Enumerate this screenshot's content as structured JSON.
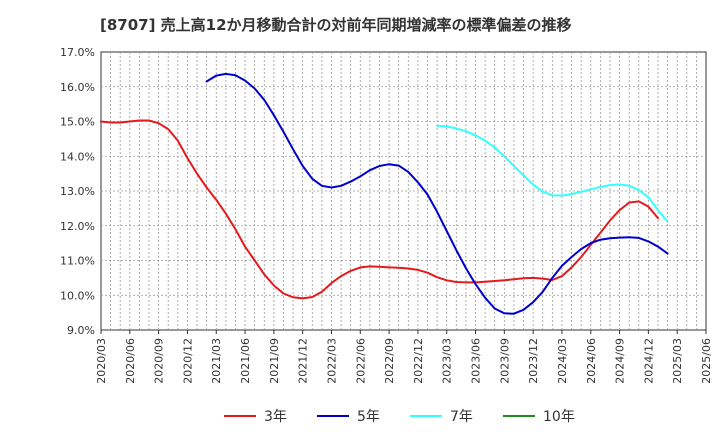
{
  "chart_data": {
    "type": "line",
    "title": "[8707]  売上高12か月移動合計の対前年同期増減率の標準偏差の推移",
    "ylim": [
      9.0,
      17.0
    ],
    "yticks": [
      "9.0%",
      "10.0%",
      "11.0%",
      "12.0%",
      "13.0%",
      "14.0%",
      "15.0%",
      "16.0%",
      "17.0%"
    ],
    "x_range": [
      "2020/03",
      "2025/06"
    ],
    "xticks": [
      "2020/03",
      "2020/06",
      "2020/09",
      "2020/12",
      "2021/03",
      "2021/06",
      "2021/09",
      "2021/12",
      "2022/03",
      "2022/06",
      "2022/09",
      "2022/12",
      "2023/03",
      "2023/06",
      "2023/09",
      "2023/12",
      "2024/03",
      "2024/06",
      "2024/09",
      "2024/12",
      "2025/03",
      "2025/06"
    ],
    "grid": true,
    "legend_position": "bottom",
    "series": [
      {
        "name": "3年",
        "color": "#e41a1c",
        "start": "2020/03",
        "values": [
          15.0,
          14.97,
          14.97,
          15.0,
          15.03,
          15.03,
          14.95,
          14.78,
          14.45,
          13.95,
          13.5,
          13.1,
          12.75,
          12.35,
          11.9,
          11.4,
          11.0,
          10.6,
          10.28,
          10.05,
          9.94,
          9.91,
          9.95,
          10.1,
          10.35,
          10.55,
          10.7,
          10.8,
          10.83,
          10.82,
          10.8,
          10.79,
          10.77,
          10.73,
          10.65,
          10.52,
          10.43,
          10.38,
          10.37,
          10.37,
          10.39,
          10.41,
          10.43,
          10.46,
          10.49,
          10.5,
          10.48,
          10.44,
          10.55,
          10.8,
          11.1,
          11.45,
          11.8,
          12.15,
          12.45,
          12.67,
          12.7,
          12.55,
          12.22
        ]
      },
      {
        "name": "5年",
        "color": "#0000cc",
        "start": "2021/02",
        "values": [
          16.15,
          16.32,
          16.37,
          16.33,
          16.18,
          15.95,
          15.62,
          15.18,
          14.7,
          14.2,
          13.72,
          13.35,
          13.15,
          13.1,
          13.15,
          13.27,
          13.42,
          13.6,
          13.72,
          13.77,
          13.73,
          13.55,
          13.25,
          12.9,
          12.4,
          11.85,
          11.3,
          10.78,
          10.32,
          9.93,
          9.62,
          9.48,
          9.47,
          9.58,
          9.8,
          10.1,
          10.5,
          10.85,
          11.1,
          11.33,
          11.5,
          11.6,
          11.64,
          11.66,
          11.67,
          11.65,
          11.55,
          11.4,
          11.2
        ]
      },
      {
        "name": "7年",
        "color": "#33ffff",
        "start": "2023/02",
        "values": [
          14.88,
          14.86,
          14.8,
          14.72,
          14.6,
          14.45,
          14.25,
          14.0,
          13.72,
          13.45,
          13.18,
          12.98,
          12.88,
          12.87,
          12.91,
          12.98,
          13.05,
          13.12,
          13.17,
          13.19,
          13.15,
          13.03,
          12.82,
          12.45,
          12.12
        ]
      },
      {
        "name": "10年",
        "color": "#228b22",
        "start": "2025/03",
        "values": []
      }
    ]
  }
}
